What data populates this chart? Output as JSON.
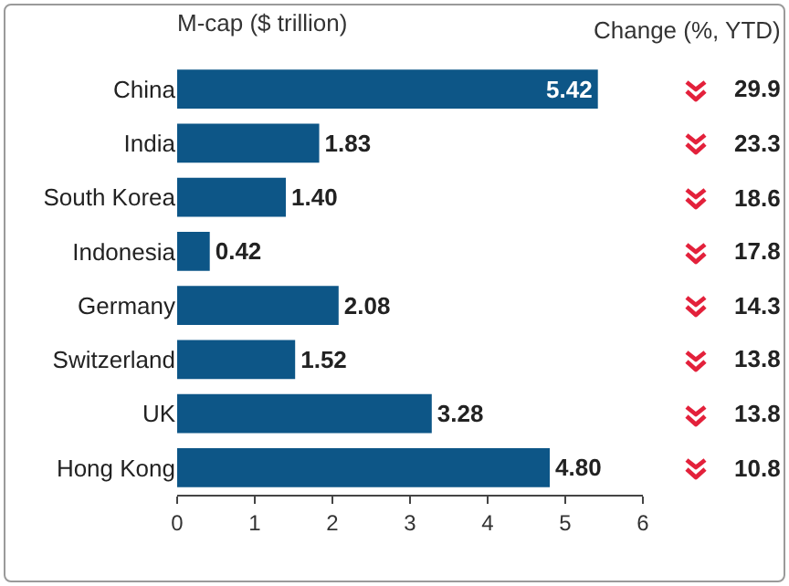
{
  "chart_data": {
    "type": "bar",
    "orientation": "horizontal",
    "title": "M-cap ($ trillion)",
    "categories": [
      "China",
      "India",
      "South Korea",
      "Indonesia",
      "Germany",
      "Switzerland",
      "UK",
      "Hong Kong"
    ],
    "values": [
      5.42,
      1.83,
      1.4,
      0.42,
      2.08,
      1.52,
      3.28,
      4.8
    ],
    "value_labels": [
      "5.42",
      "1.83",
      "1.40",
      "0.42",
      "2.08",
      "1.52",
      "3.28",
      "4.80"
    ],
    "color": "#0d5687",
    "xlim": [
      0,
      6
    ],
    "xticks": [
      0,
      1,
      2,
      3,
      4,
      5,
      6
    ],
    "grid": false,
    "legend": false,
    "annotations": [
      "Change (%, YTD)",
      "29.9",
      "23.3",
      "18.6",
      "17.8",
      "14.3",
      "13.8",
      "13.8",
      "10.8"
    ]
  }
}
